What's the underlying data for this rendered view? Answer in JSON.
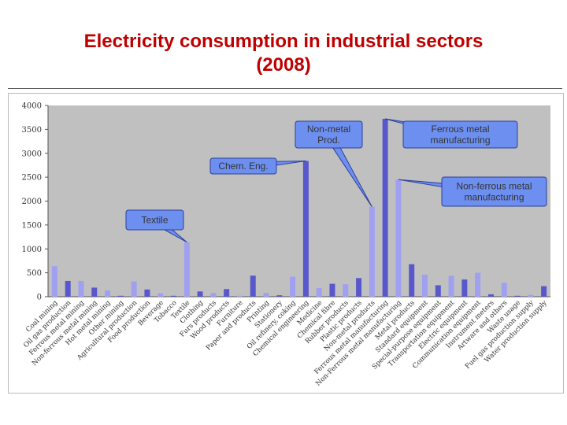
{
  "title": {
    "line1": "Electricity consumption in industrial sectors",
    "line2": "(2008)"
  },
  "colors": {
    "title": "#c00000",
    "plot_background": "#c0c0c0",
    "bar_light": "#a0a0f0",
    "bar_dark": "#5858cc",
    "callout_fill": "#6d8ff0",
    "callout_stroke": "#2b3f9a"
  },
  "chart_data": {
    "type": "bar",
    "ylim": [
      0,
      4000
    ],
    "yticks": [
      0,
      500,
      1000,
      1500,
      2000,
      2500,
      3000,
      3500,
      4000
    ],
    "grid": false,
    "legend": "none",
    "categories": [
      "Coal mining",
      "Oil gas production",
      "Ferrous metal mining",
      "Non-ferrous metal mining",
      "Hot metal mining",
      "Other mining",
      "Agricultural production",
      "Food production",
      "Beverage",
      "Tobacco",
      "Textile",
      "Clothing",
      "Furs products",
      "Wood products",
      "Furniture",
      "Paper and products",
      "Printing",
      "Stationery",
      "Oil refinery, coking",
      "Chemical engineering",
      "Medicine",
      "Chemical fibre",
      "Rubber products",
      "Plastic products",
      "Non-metal products",
      "Ferrous metal manufacturing",
      "Non-Ferrous metal manufacturing",
      "Metal products",
      "Standard equipment",
      "Special-purpose equipment",
      "Transportation equipment",
      "Electric equipment",
      "Communication equipment",
      "Instrument meters",
      "Artware and others",
      "Waste usage",
      "Fuel gas production supply",
      "Water production supply"
    ],
    "values": [
      640,
      330,
      330,
      190,
      130,
      20,
      320,
      150,
      70,
      20,
      1140,
      110,
      80,
      160,
      20,
      440,
      80,
      30,
      420,
      2840,
      180,
      270,
      260,
      390,
      1880,
      3720,
      2450,
      680,
      460,
      240,
      440,
      360,
      500,
      50,
      290,
      20,
      40,
      220
    ],
    "annotations": [
      {
        "text": "Textile",
        "target": "Textile"
      },
      {
        "text": "Chem. Eng.",
        "target": "Chemical engineering"
      },
      {
        "text": "Non-metal Prod.",
        "target": "Non-metal products"
      },
      {
        "text": "Ferrous metal manufacturing",
        "target": "Ferrous metal manufacturing"
      },
      {
        "text": "Non-ferrous metal manufacturing",
        "target": "Non-Ferrous metal manufacturing"
      }
    ]
  }
}
